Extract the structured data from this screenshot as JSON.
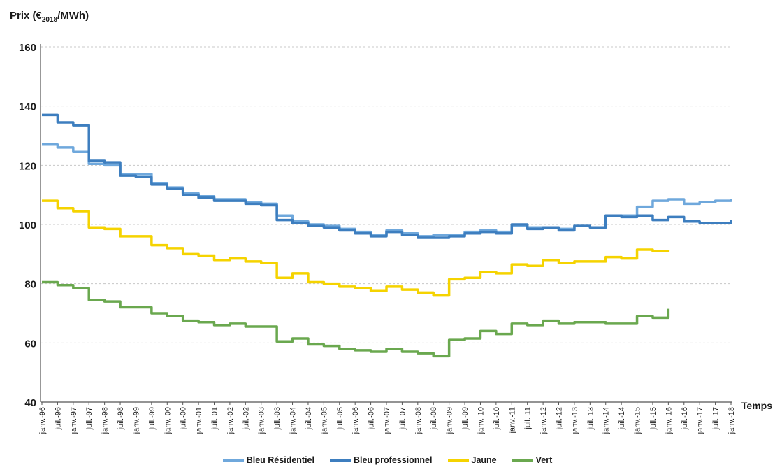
{
  "chart_data": {
    "type": "line",
    "ylabel": {
      "prefix": "Prix (€",
      "sub": "2018",
      "suffix": "/MWh)"
    },
    "xlabel": "Temps",
    "ylim": [
      40,
      160
    ],
    "yticks": [
      40,
      60,
      80,
      100,
      120,
      140,
      160
    ],
    "grid": true,
    "legend_position": "bottom",
    "x_tick_labels": [
      "janv.-96",
      "juil.-96",
      "janv.-97",
      "juil.-97",
      "janv.-98",
      "juil.-98",
      "janv.-99",
      "juil.-99",
      "janv.-00",
      "juil.-00",
      "janv.-01",
      "juil.-01",
      "janv.-02",
      "juil.-02",
      "janv.-03",
      "juil.-03",
      "janv.-04",
      "juil.-04",
      "janv.-05",
      "juil.-05",
      "janv.-06",
      "juil.-06",
      "janv.-07",
      "juil.-07",
      "janv.-08",
      "juil.-08",
      "janv.-09",
      "juil.-09",
      "janv.-10",
      "juil.-10",
      "janv.-11",
      "juil.-11",
      "janv.-12",
      "juil.-12",
      "janv.-13",
      "juil.-13",
      "janv.-14",
      "juil.-14",
      "janv.-15",
      "juil.-15",
      "janv.-16",
      "juil.-16",
      "janv.-17",
      "juil.-17",
      "janv.-18"
    ],
    "x": [
      "janv.-96",
      "juil.-96",
      "janv.-97",
      "juil.-97",
      "janv.-98",
      "juil.-98",
      "janv.-99",
      "juil.-99",
      "janv.-00",
      "juil.-00",
      "janv.-01",
      "juil.-01",
      "janv.-02",
      "juil.-02",
      "janv.-03",
      "juil.-03",
      "janv.-04",
      "juil.-04",
      "janv.-05",
      "juil.-05",
      "janv.-06",
      "juil.-06",
      "janv.-07",
      "juil.-07",
      "janv.-08",
      "juil.-08",
      "janv.-09",
      "juil.-09",
      "janv.-10",
      "juil.-10",
      "janv.-11",
      "juil.-11",
      "janv.-12",
      "juil.-12",
      "janv.-13",
      "juil.-13",
      "janv.-14",
      "juil.-14",
      "janv.-15",
      "juil.-15",
      "janv.-16",
      "juil.-16",
      "janv.-17",
      "juil.-17",
      "janv.-18"
    ],
    "series": [
      {
        "name": "Bleu Résidentiel",
        "color": "#6fa8dc",
        "values": [
          127,
          126,
          124.5,
          120.5,
          120,
          117,
          117,
          114,
          112.5,
          110.5,
          109.5,
          108.5,
          108.5,
          107.5,
          107,
          103,
          101,
          100,
          99.5,
          98.5,
          97.5,
          96.5,
          98,
          97,
          96,
          96.5,
          96.5,
          97.5,
          98,
          97.5,
          99.5,
          99,
          99,
          98.5,
          99.5,
          99,
          103,
          103,
          106,
          108,
          108.5,
          107,
          107.5,
          108,
          108.5
        ]
      },
      {
        "name": "Bleu professionnel",
        "color": "#3d7ebf",
        "values": [
          137,
          134.5,
          133.5,
          121.5,
          121,
          116.5,
          116,
          113.5,
          112,
          110,
          109,
          108,
          108,
          107,
          106.5,
          101.5,
          100.5,
          99.5,
          99,
          98,
          97,
          96,
          97.5,
          96.5,
          95.5,
          95.5,
          96,
          97,
          97.5,
          97,
          100,
          98.5,
          99,
          98,
          99.5,
          99,
          103,
          102.5,
          103,
          101.5,
          102.5,
          101,
          100.5,
          100.5,
          101.5
        ]
      },
      {
        "name": "Jaune",
        "color": "#f5d300",
        "values": [
          108,
          105.5,
          104.5,
          99,
          98.5,
          96,
          96,
          93,
          92,
          90,
          89.5,
          88,
          88.5,
          87.5,
          87,
          82,
          83.5,
          80.5,
          80,
          79,
          78.5,
          77.5,
          79,
          78,
          77,
          76,
          81.5,
          82,
          84,
          83.5,
          86.5,
          86,
          88,
          87,
          87.5,
          87.5,
          89,
          88.5,
          91.5,
          91,
          91.5,
          null,
          null,
          null,
          null
        ]
      },
      {
        "name": "Vert",
        "color": "#6aa84f",
        "values": [
          80.5,
          79.5,
          78.5,
          74.5,
          74,
          72,
          72,
          70,
          69,
          67.5,
          67,
          66,
          66.5,
          65.5,
          65.5,
          60.5,
          61.5,
          59.5,
          59,
          58,
          57.5,
          57,
          58,
          57,
          56.5,
          55.5,
          61,
          61.5,
          64,
          63,
          66.5,
          66,
          67.5,
          66.5,
          67,
          67,
          66.5,
          66.5,
          69,
          68.5,
          71.5,
          null,
          null,
          null,
          null
        ]
      }
    ]
  }
}
